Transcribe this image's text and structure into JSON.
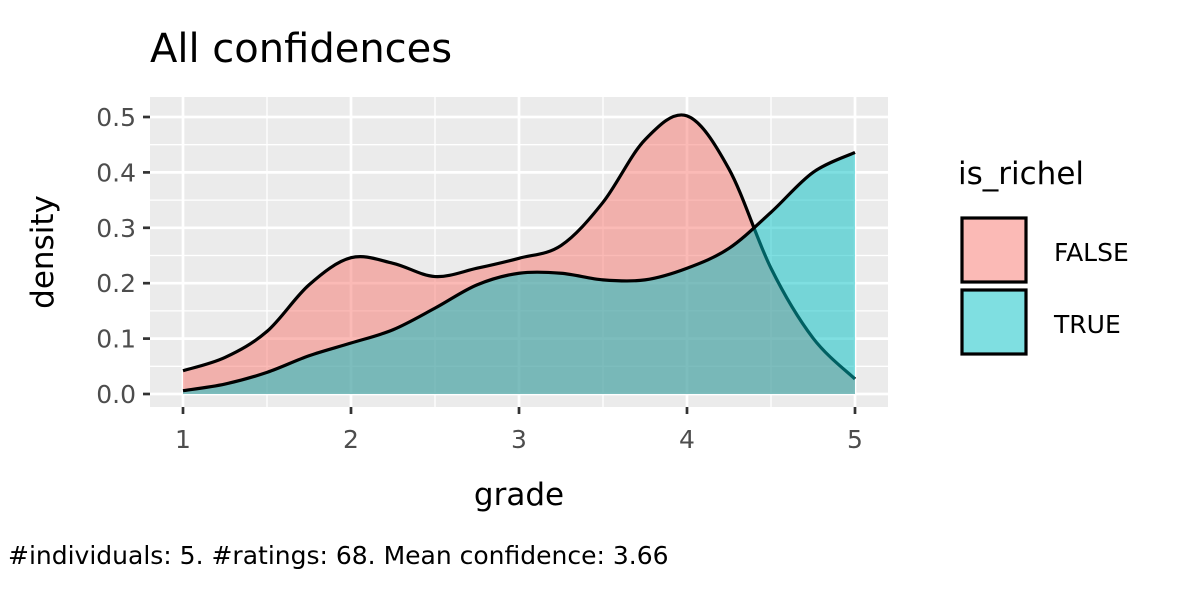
{
  "chart_data": {
    "type": "area",
    "title": "All confidences",
    "xlabel": "grade",
    "ylabel": "density",
    "caption": "#individuals: 5. #ratings: 68. Mean confidence: 3.66",
    "xlim": [
      1,
      5
    ],
    "ylim": [
      0,
      0.5
    ],
    "x_ticks": [
      "1",
      "2",
      "3",
      "4",
      "5"
    ],
    "y_ticks": [
      "0.0",
      "0.1",
      "0.2",
      "0.3",
      "0.4",
      "0.5"
    ],
    "grid": true,
    "legend": {
      "title": "is_richel",
      "position": "right"
    },
    "x": [
      1,
      1.25,
      1.5,
      1.75,
      2,
      2.25,
      2.5,
      2.75,
      3,
      3.25,
      3.5,
      3.75,
      4,
      4.25,
      4.5,
      4.75,
      5
    ],
    "series": [
      {
        "name": "FALSE",
        "color": "#F8766D",
        "values": [
          0.042,
          0.066,
          0.113,
          0.197,
          0.246,
          0.236,
          0.212,
          0.227,
          0.245,
          0.268,
          0.346,
          0.459,
          0.502,
          0.406,
          0.227,
          0.101,
          0.027
        ]
      },
      {
        "name": "TRUE",
        "color": "#00BFC4",
        "values": [
          0.006,
          0.018,
          0.039,
          0.069,
          0.092,
          0.116,
          0.155,
          0.197,
          0.218,
          0.218,
          0.206,
          0.206,
          0.227,
          0.263,
          0.328,
          0.4,
          0.436
        ]
      }
    ]
  }
}
